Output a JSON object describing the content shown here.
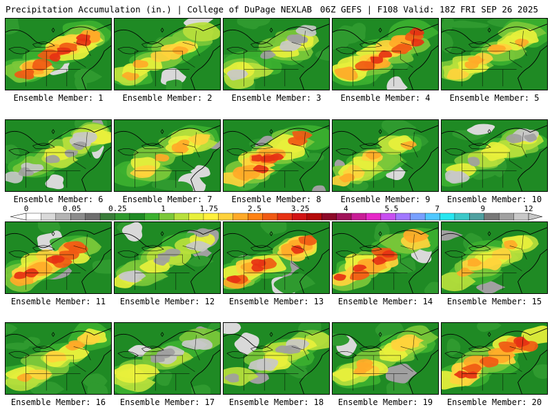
{
  "header": {
    "left": "Precipitation Accumulation (in.) | College of DuPage NEXLAB",
    "right": "06Z GEFS | F108 Valid: 18Z FRI SEP 26 2025"
  },
  "caption_prefix": "Ensemble Member:",
  "members": [
    {
      "number": "1",
      "label": "Ensemble Member: 1",
      "intensity": "high"
    },
    {
      "number": "2",
      "label": "Ensemble Member: 2",
      "intensity": "medium"
    },
    {
      "number": "3",
      "label": "Ensemble Member: 3",
      "intensity": "low"
    },
    {
      "number": "4",
      "label": "Ensemble Member: 4",
      "intensity": "high"
    },
    {
      "number": "5",
      "label": "Ensemble Member: 5",
      "intensity": "medium"
    },
    {
      "number": "6",
      "label": "Ensemble Member: 6",
      "intensity": "low"
    },
    {
      "number": "7",
      "label": "Ensemble Member: 7",
      "intensity": "medium"
    },
    {
      "number": "8",
      "label": "Ensemble Member: 8",
      "intensity": "high"
    },
    {
      "number": "9",
      "label": "Ensemble Member: 9",
      "intensity": "medium"
    },
    {
      "number": "10",
      "label": "Ensemble Member: 10",
      "intensity": "low"
    },
    {
      "number": "11",
      "label": "Ensemble Member: 11",
      "intensity": "high"
    },
    {
      "number": "12",
      "label": "Ensemble Member: 12",
      "intensity": "low"
    },
    {
      "number": "13",
      "label": "Ensemble Member: 13",
      "intensity": "high"
    },
    {
      "number": "14",
      "label": "Ensemble Member: 14",
      "intensity": "high"
    },
    {
      "number": "15",
      "label": "Ensemble Member: 15",
      "intensity": "medium"
    },
    {
      "number": "16",
      "label": "Ensemble Member: 16",
      "intensity": "medium"
    },
    {
      "number": "17",
      "label": "Ensemble Member: 17",
      "intensity": "low"
    },
    {
      "number": "18",
      "label": "Ensemble Member: 18",
      "intensity": "low"
    },
    {
      "number": "19",
      "label": "Ensemble Member: 19",
      "intensity": "medium"
    },
    {
      "number": "20",
      "label": "Ensemble Member: 20",
      "intensity": "high"
    }
  ],
  "colorbar": {
    "tick_labels": [
      "0",
      "0.05",
      "0.25",
      "1",
      "1.75",
      "2.5",
      "3.25",
      "4",
      "5.5",
      "7",
      "9",
      "12"
    ],
    "colors": [
      "#ffffff",
      "#d9d9d9",
      "#b3b3b3",
      "#8c8c8c",
      "#6e6e6e",
      "#3a7d3a",
      "#2f9a2f",
      "#1f8a24",
      "#3cb030",
      "#7cc83a",
      "#b8e03c",
      "#e8f03c",
      "#fff03c",
      "#ffd23c",
      "#ffaa28",
      "#ff8214",
      "#f05a14",
      "#e63214",
      "#d21414",
      "#b40a0a",
      "#8c0a28",
      "#a0145a",
      "#c81e96",
      "#e628c8",
      "#c850f0",
      "#a078ff",
      "#78a0ff",
      "#50c8ff",
      "#28e6f0",
      "#3cc8c8",
      "#50a0a0",
      "#787878",
      "#a0a0a0",
      "#c8c8c8"
    ]
  }
}
